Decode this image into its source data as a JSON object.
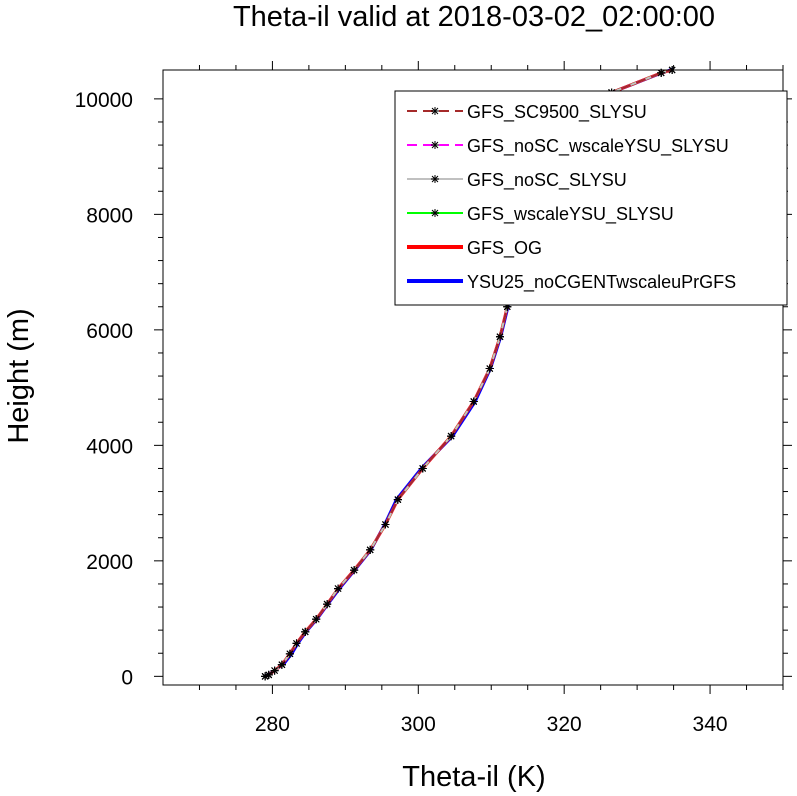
{
  "chart_data": {
    "type": "line",
    "title": "Theta-il valid at 2018-03-02_02:00:00",
    "xlabel": "Theta-il (K)",
    "ylabel": "Height (m)",
    "xlim": [
      265,
      350
    ],
    "ylim": [
      -150,
      10500
    ],
    "x_ticks": [
      280,
      300,
      320,
      340
    ],
    "y_ticks": [
      0,
      2000,
      4000,
      6000,
      8000,
      10000
    ],
    "grid": false,
    "legend_position": "top-right",
    "series": [
      {
        "name": "GFS_SC9500_SLYSU",
        "color": "#a52a2a",
        "line_style": "dashed",
        "markers": true,
        "x": [
          279.0,
          279.5,
          280.3,
          281.3,
          282.4,
          283.3,
          284.5,
          286.0,
          287.5,
          289.0,
          291.2,
          293.4,
          295.5,
          297.2,
          300.6,
          304.5,
          307.6,
          309.8,
          311.2,
          312.2,
          313.1,
          313.8,
          314.6,
          315.5,
          316.2,
          316.8,
          317.5,
          318.3,
          320.0,
          326.5,
          333.3,
          334.8
        ],
        "y": [
          0,
          25,
          100,
          200,
          390,
          570,
          770,
          990,
          1250,
          1520,
          1840,
          2190,
          2630,
          3060,
          3600,
          4160,
          4760,
          5330,
          5880,
          6400,
          6880,
          7330,
          7800,
          8270,
          8700,
          9030,
          9380,
          9700,
          9890,
          10110,
          10450,
          10500
        ]
      },
      {
        "name": "GFS_noSC_wscaleYSU_SLYSU",
        "color": "#ff00ff",
        "line_style": "dashed",
        "markers": true,
        "x": [
          279.0,
          279.5,
          280.3,
          281.3,
          282.4,
          283.3,
          284.5,
          286.0,
          287.5,
          289.0,
          291.2,
          293.4,
          295.5,
          297.2,
          300.6,
          304.5,
          307.6,
          309.8,
          311.2,
          312.2,
          313.1,
          313.8,
          314.6,
          315.5,
          316.2,
          316.8,
          317.5,
          318.3,
          320.0,
          326.5,
          333.3,
          334.8
        ],
        "y": [
          0,
          25,
          100,
          200,
          390,
          570,
          770,
          990,
          1250,
          1520,
          1840,
          2190,
          2630,
          3060,
          3600,
          4160,
          4760,
          5330,
          5880,
          6400,
          6880,
          7330,
          7800,
          8270,
          8700,
          9030,
          9380,
          9700,
          9890,
          10110,
          10450,
          10500
        ]
      },
      {
        "name": "GFS_noSC_SLYSU",
        "color": "#c0c0c0",
        "line_style": "solid",
        "markers": true,
        "x": [
          279.0,
          279.5,
          280.3,
          281.3,
          282.4,
          283.3,
          284.5,
          286.0,
          287.5,
          289.0,
          291.2,
          293.4,
          295.5,
          297.2,
          300.6,
          304.5,
          307.6,
          309.8,
          311.2,
          312.2,
          313.1,
          313.8,
          314.6,
          315.5,
          316.2,
          316.8,
          317.5,
          318.3,
          320.0,
          326.5,
          333.3,
          334.8
        ],
        "y": [
          0,
          25,
          100,
          200,
          390,
          570,
          770,
          990,
          1250,
          1520,
          1840,
          2190,
          2630,
          3060,
          3600,
          4160,
          4760,
          5330,
          5880,
          6400,
          6880,
          7330,
          7800,
          8270,
          8700,
          9030,
          9380,
          9700,
          9890,
          10110,
          10450,
          10500
        ]
      },
      {
        "name": "GFS_wscaleYSU_SLYSU",
        "color": "#00ff00",
        "line_style": "solid",
        "markers": true,
        "x": [
          279.0,
          279.5,
          280.3,
          281.3,
          282.4,
          283.3,
          284.5,
          286.0,
          287.5,
          289.0,
          291.2,
          293.4,
          295.5,
          297.2,
          300.6,
          304.5,
          307.6,
          309.8,
          311.2,
          312.2,
          313.1,
          313.8,
          314.6,
          315.5,
          316.2,
          316.8,
          317.5,
          318.3,
          320.0,
          326.5,
          333.3,
          334.8
        ],
        "y": [
          0,
          25,
          100,
          200,
          390,
          570,
          770,
          990,
          1250,
          1520,
          1840,
          2190,
          2630,
          3060,
          3600,
          4160,
          4760,
          5330,
          5880,
          6400,
          6880,
          7330,
          7800,
          8270,
          8700,
          9030,
          9380,
          9700,
          9890,
          10110,
          10450,
          10500
        ]
      },
      {
        "name": "GFS_OG",
        "color": "#ff0000",
        "line_style": "solid",
        "markers": false,
        "x": [
          279.0,
          279.5,
          280.3,
          281.3,
          282.4,
          283.3,
          284.5,
          286.0,
          287.5,
          289.0,
          291.2,
          293.4,
          295.5,
          297.2,
          300.6,
          304.5,
          307.6,
          309.8,
          311.2,
          312.2,
          313.1,
          313.8,
          314.6,
          315.5,
          316.2,
          316.8,
          317.5,
          318.3,
          320.0,
          326.5,
          333.3,
          334.8
        ],
        "y": [
          0,
          25,
          100,
          200,
          390,
          570,
          770,
          990,
          1250,
          1520,
          1840,
          2190,
          2630,
          3060,
          3600,
          4160,
          4760,
          5330,
          5880,
          6400,
          6880,
          7330,
          7800,
          8270,
          8700,
          9030,
          9380,
          9700,
          9890,
          10110,
          10450,
          10500
        ]
      },
      {
        "name": "YSU25_noCGENTwscaleuPrGFS",
        "color": "#0000ff",
        "line_style": "solid",
        "markers": false,
        "x": [
          278.8,
          279.4,
          280.3,
          281.6,
          282.7,
          283.5,
          284.6,
          286.1,
          287.6,
          289.2,
          291.3,
          293.5,
          295.4,
          297.0,
          300.4,
          304.7,
          307.8,
          309.9,
          311.3,
          312.3,
          313.2,
          313.9,
          314.6,
          315.3,
          316.0,
          316.6,
          317.3,
          318.2,
          319.9,
          326.5,
          333.4,
          335.0
        ],
        "y": [
          0,
          25,
          100,
          220,
          400,
          570,
          770,
          990,
          1250,
          1520,
          1840,
          2190,
          2630,
          3060,
          3600,
          4160,
          4760,
          5330,
          5880,
          6400,
          6880,
          7330,
          7800,
          8270,
          8700,
          9030,
          9380,
          9700,
          9890,
          10110,
          10450,
          10520
        ]
      }
    ]
  }
}
